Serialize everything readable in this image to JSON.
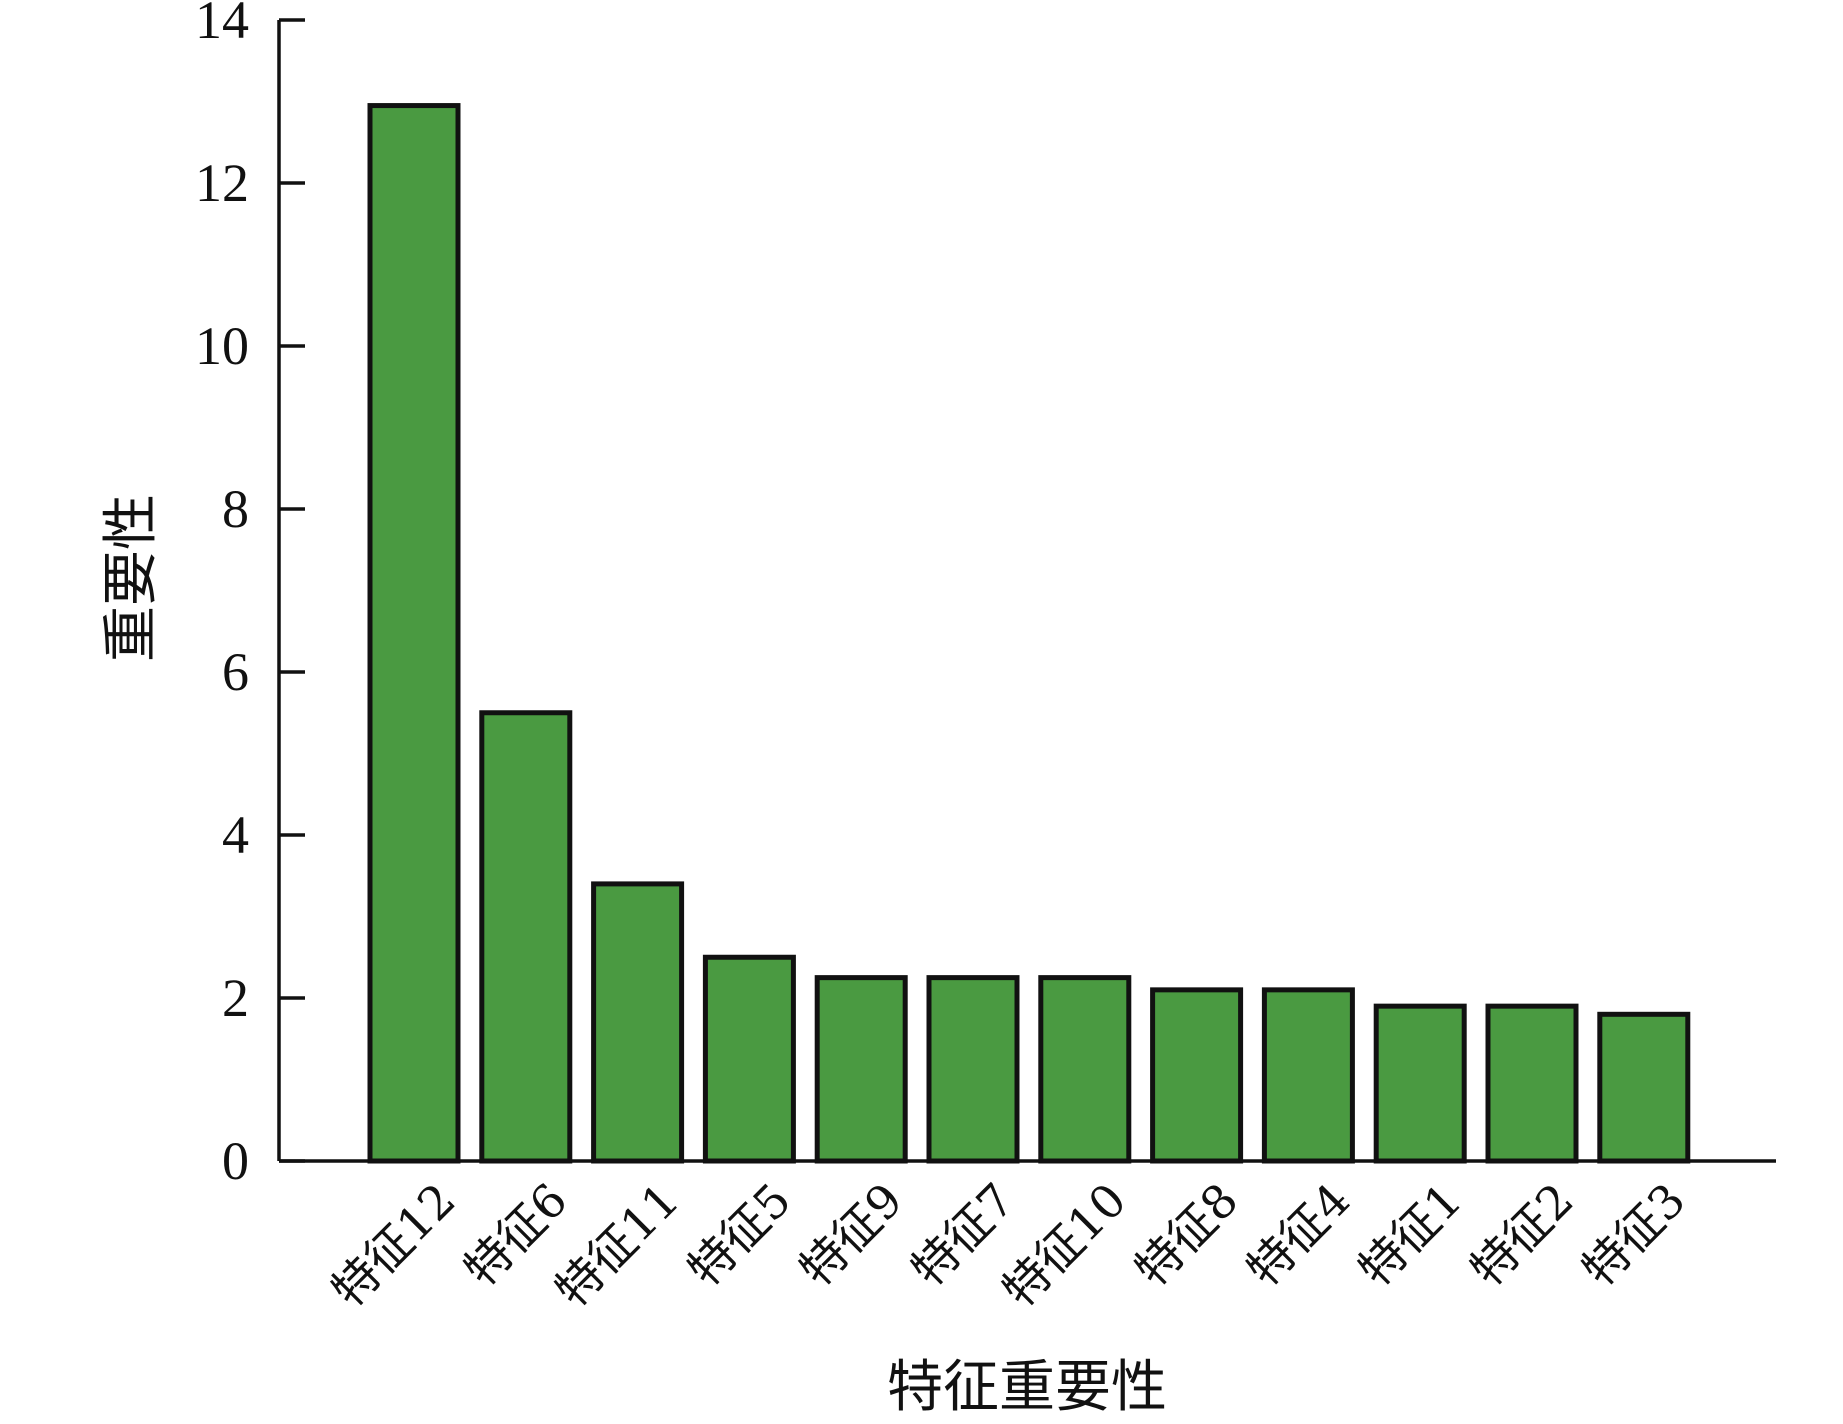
{
  "chart_data": {
    "type": "bar",
    "xlabel": "特征重要性",
    "ylabel": "重要性",
    "categories": [
      "特征12",
      "特征6",
      "特征11",
      "特征5",
      "特征9",
      "特征7",
      "特征10",
      "特征8",
      "特征4",
      "特征1",
      "特征2",
      "特征3"
    ],
    "values": [
      12.95,
      5.5,
      3.4,
      2.5,
      2.25,
      2.25,
      2.25,
      2.1,
      2.1,
      1.9,
      1.9,
      1.8
    ],
    "ylim": [
      0,
      14
    ],
    "yticks": [
      0,
      2,
      4,
      6,
      8,
      10,
      12,
      14
    ],
    "bar_color": "#4a9a41",
    "edge_color": "#111111",
    "grid": false,
    "legend": "none"
  }
}
